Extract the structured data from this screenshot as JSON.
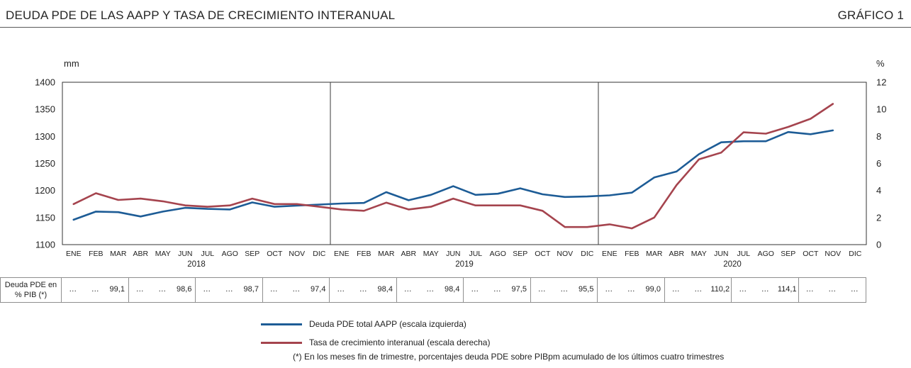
{
  "header": {
    "title": "DEUDA PDE DE LAS AAPP Y TASA DE CRECIMIENTO INTERANUAL",
    "grafico_label": "GRÁFICO 1"
  },
  "chart_data": {
    "type": "line",
    "title": "DEUDA PDE DE LAS AAPP Y TASA DE CRECIMIENTO INTERANUAL",
    "left_axis": {
      "label": "mm",
      "min": 1100,
      "max": 1400,
      "ticks": [
        1400,
        1350,
        1300,
        1250,
        1200,
        1150,
        1100
      ]
    },
    "right_axis": {
      "label": "%",
      "min": 0,
      "max": 12,
      "ticks": [
        12,
        10,
        8,
        6,
        4,
        2,
        0
      ]
    },
    "months": [
      "ENE",
      "FEB",
      "MAR",
      "ABR",
      "MAY",
      "JUN",
      "JUL",
      "AGO",
      "SEP",
      "OCT",
      "NOV",
      "DIC",
      "ENE",
      "FEB",
      "MAR",
      "ABR",
      "MAY",
      "JUN",
      "JUL",
      "AGO",
      "SEP",
      "OCT",
      "NOV",
      "DIC",
      "ENE",
      "FEB",
      "MAR",
      "ABR",
      "MAY",
      "JUN",
      "JUL",
      "AGO",
      "SEP",
      "OCT",
      "NOV",
      "DIC"
    ],
    "years": [
      "2018",
      "2019",
      "2020"
    ],
    "year_separator_indices": [
      12,
      24
    ],
    "grid": false,
    "legend_position": "bottom",
    "series": [
      {
        "id": "debt-line",
        "name": "Deuda PDE total AAPP (escala izquierda)",
        "axis": "left",
        "color": "#1D5C96",
        "values": [
          1146,
          1161,
          1160,
          1152,
          1161,
          1168,
          1166,
          1165,
          1178,
          1170,
          1172,
          1174,
          1176,
          1177,
          1197,
          1182,
          1192,
          1208,
          1192,
          1194,
          1204,
          1193,
          1188,
          1189,
          1191,
          1196,
          1224,
          1235,
          1267,
          1289,
          1291,
          1291,
          1308,
          1304,
          1311
        ]
      },
      {
        "id": "growth-line",
        "name": "Tasa de crecimiento interanual (escala derecha)",
        "axis": "right",
        "color": "#A5444E",
        "values": [
          3.0,
          3.8,
          3.3,
          3.4,
          3.2,
          2.9,
          2.8,
          2.9,
          3.4,
          3.0,
          3.0,
          2.8,
          2.6,
          2.5,
          3.1,
          2.6,
          2.8,
          3.4,
          2.9,
          2.9,
          2.9,
          2.5,
          1.3,
          1.3,
          1.5,
          1.2,
          2.0,
          4.4,
          6.3,
          6.8,
          8.3,
          8.2,
          8.7,
          9.3,
          10.4
        ]
      }
    ]
  },
  "table": {
    "label_line1": "Deuda PDE en",
    "label_line2": "% PIB (*)",
    "cells": [
      "…",
      "…",
      "99,1",
      "…",
      "…",
      "98,6",
      "…",
      "…",
      "98,7",
      "…",
      "…",
      "97,4",
      "…",
      "…",
      "98,4",
      "…",
      "…",
      "98,4",
      "…",
      "…",
      "97,5",
      "…",
      "…",
      "95,5",
      "…",
      "…",
      "99,0",
      "…",
      "…",
      "110,2",
      "…",
      "…",
      "114,1",
      "…",
      "…",
      "…"
    ]
  },
  "legend": {
    "items": [
      {
        "label": "Deuda PDE total AAPP (escala izquierda)",
        "color": "#1D5C96"
      },
      {
        "label": "Tasa de crecimiento interanual (escala derecha)",
        "color": "#A5444E"
      }
    ]
  },
  "footnote": "(*) En los meses fin de trimestre, porcentajes deuda PDE sobre PIBpm acumulado de los últimos cuatro trimestres"
}
